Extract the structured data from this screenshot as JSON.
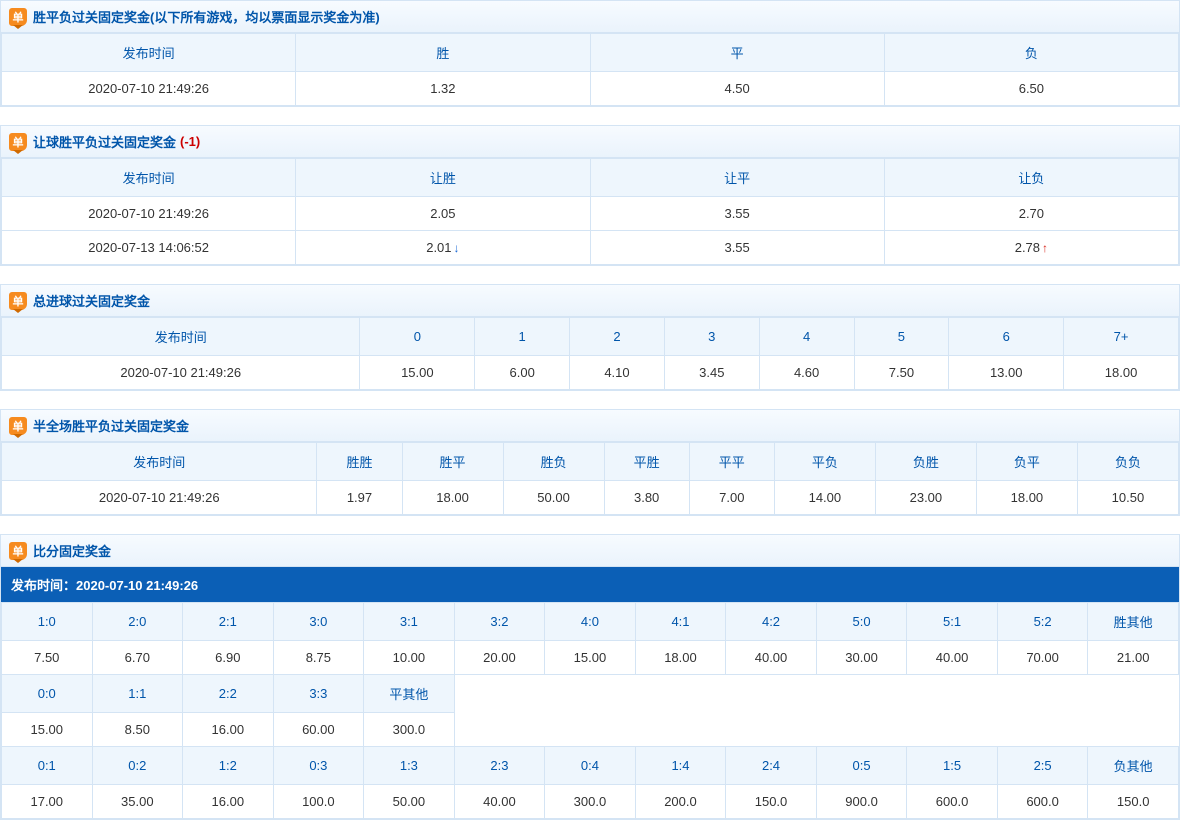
{
  "badgeText": "单",
  "sections": {
    "wdl": {
      "title": "胜平负过关固定奖金(以下所有游戏，均以票面显示奖金为准)",
      "columns": [
        "发布时间",
        "胜",
        "平",
        "负"
      ],
      "rows": [
        [
          "2020-07-10 21:49:26",
          "1.32",
          "4.50",
          "6.50"
        ]
      ]
    },
    "handicap": {
      "title": "让球胜平负过关固定奖金",
      "titleSuffix": "(-1)",
      "columns": [
        "发布时间",
        "让胜",
        "让平",
        "让负"
      ],
      "rows": [
        {
          "cells": [
            "2020-07-10 21:49:26",
            "2.05",
            "3.55",
            "2.70"
          ],
          "arrows": [
            null,
            null,
            null,
            null
          ]
        },
        {
          "cells": [
            "2020-07-13 14:06:52",
            "2.01",
            "3.55",
            "2.78"
          ],
          "arrows": [
            null,
            "down",
            null,
            "up"
          ]
        }
      ]
    },
    "goals": {
      "title": "总进球过关固定奖金",
      "columns": [
        "发布时间",
        "0",
        "1",
        "2",
        "3",
        "4",
        "5",
        "6",
        "7+"
      ],
      "rows": [
        [
          "2020-07-10 21:49:26",
          "15.00",
          "6.00",
          "4.10",
          "3.45",
          "4.60",
          "7.50",
          "13.00",
          "18.00"
        ]
      ]
    },
    "halffull": {
      "title": "半全场胜平负过关固定奖金",
      "columns": [
        "发布时间",
        "胜胜",
        "胜平",
        "胜负",
        "平胜",
        "平平",
        "平负",
        "负胜",
        "负平",
        "负负"
      ],
      "rows": [
        [
          "2020-07-10 21:49:26",
          "1.97",
          "18.00",
          "50.00",
          "3.80",
          "7.00",
          "14.00",
          "23.00",
          "18.00",
          "10.50"
        ]
      ]
    },
    "score": {
      "title": "比分固定奖金",
      "timestampLabel": "发布时间：",
      "timestamp": "2020-07-10 21:49:26",
      "blocks": [
        {
          "headers": [
            "1:0",
            "2:0",
            "2:1",
            "3:0",
            "3:1",
            "3:2",
            "4:0",
            "4:1",
            "4:2",
            "5:0",
            "5:1",
            "5:2",
            "胜其他"
          ],
          "values": [
            "7.50",
            "6.70",
            "6.90",
            "8.75",
            "10.00",
            "20.00",
            "15.00",
            "18.00",
            "40.00",
            "30.00",
            "40.00",
            "70.00",
            "21.00"
          ]
        },
        {
          "headers": [
            "0:0",
            "1:1",
            "2:2",
            "3:3",
            "平其他"
          ],
          "values": [
            "15.00",
            "8.50",
            "16.00",
            "60.00",
            "300.0"
          ]
        },
        {
          "headers": [
            "0:1",
            "0:2",
            "1:2",
            "0:3",
            "1:3",
            "2:3",
            "0:4",
            "1:4",
            "2:4",
            "0:5",
            "1:5",
            "2:5",
            "负其他"
          ],
          "values": [
            "17.00",
            "35.00",
            "16.00",
            "100.0",
            "50.00",
            "40.00",
            "300.0",
            "200.0",
            "150.0",
            "900.0",
            "600.0",
            "600.0",
            "150.0"
          ]
        }
      ]
    }
  },
  "colors": {
    "headerBg": "#eef6fd",
    "headerText": "#0055aa",
    "border": "#d4e4f4",
    "badge": "#f68b1f",
    "scoreBar": "#0b5fb6",
    "arrowDown": "#1e6bd6",
    "arrowUp": "#d6281e",
    "suffixRed": "#cc0000"
  }
}
